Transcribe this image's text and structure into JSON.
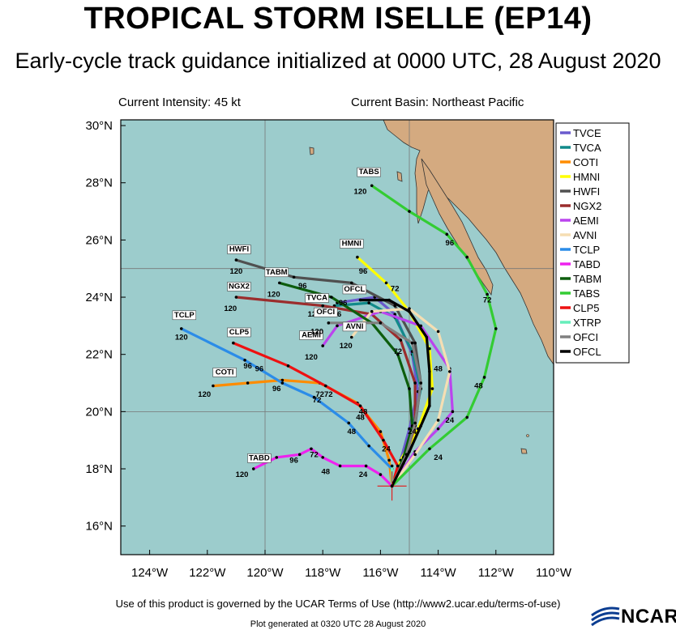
{
  "title": "TROPICAL STORM ISELLE (EP14)",
  "subtitle": "Early-cycle track guidance initialized at 0000 UTC, 28 August 2020",
  "current_intensity": "Current Intensity: 45 kt",
  "current_basin": "Current Basin: Northeast Pacific",
  "footer_terms": "Use of this product is governed by the UCAR Terms of Use (http://www2.ucar.edu/terms-of-use)",
  "footer_plot": "Plot generated at 0320 UTC   28 August 2020",
  "logo_text": "NCAR",
  "colors": {
    "ocean": "#9ccccc",
    "land": "#d4aa80"
  },
  "axes": {
    "lon_ticks": [
      "124°W",
      "122°W",
      "120°W",
      "118°W",
      "116°W",
      "114°W",
      "112°W",
      "110°W"
    ],
    "lat_ticks": [
      "30°N",
      "28°N",
      "26°N",
      "24°N",
      "22°N",
      "20°N",
      "18°N",
      "16°N"
    ],
    "lon_range": [
      -125,
      -110
    ],
    "lat_range": [
      15,
      30.2
    ]
  },
  "initial_position": {
    "lon": -115.6,
    "lat": 17.4
  },
  "chart_data": {
    "type": "line",
    "series": [
      {
        "name": "TVCE",
        "color": "#6a5acd",
        "points": [
          [
            -115.6,
            17.4
          ],
          [
            -115.3,
            18.3
          ],
          [
            -115.0,
            19.4
          ],
          [
            -114.7,
            20.7
          ],
          [
            -114.9,
            22.0
          ],
          [
            -115.5,
            23.4
          ],
          [
            -116.2,
            24.0
          ],
          [
            -117.5,
            23.8
          ]
        ],
        "labels": []
      },
      {
        "name": "TVCA",
        "color": "#118a8a",
        "points": [
          [
            -115.6,
            17.4
          ],
          [
            -115.2,
            18.3
          ],
          [
            -114.9,
            19.4
          ],
          [
            -114.6,
            20.8
          ],
          [
            -114.9,
            22.1
          ],
          [
            -115.5,
            23.3
          ],
          [
            -116.4,
            23.8
          ],
          [
            -117.6,
            23.7
          ]
        ],
        "labels": [
          {
            "text": "TVCA",
            "lon": -118.2,
            "lat": 23.9
          },
          {
            "text": "120",
            "lon": -118.3,
            "lat": 23.4
          },
          {
            "text": "96",
            "lon": -117.5,
            "lat": 23.4
          }
        ]
      },
      {
        "name": "COTI",
        "color": "#ff8c00",
        "points": [
          [
            -115.6,
            17.4
          ],
          [
            -115.7,
            18.3
          ],
          [
            -116.0,
            19.3
          ],
          [
            -116.8,
            20.3
          ],
          [
            -118.1,
            21.0
          ],
          [
            -119.4,
            21.1
          ],
          [
            -120.6,
            21.0
          ],
          [
            -121.8,
            20.9
          ]
        ],
        "labels": [
          {
            "text": "COTI",
            "lon": -121.4,
            "lat": 21.3
          },
          {
            "text": "120",
            "lon": -122.1,
            "lat": 20.6
          },
          {
            "text": "96",
            "lon": -119.6,
            "lat": 20.8
          },
          {
            "text": "72",
            "lon": -117.8,
            "lat": 20.6
          },
          {
            "text": "48",
            "lon": -116.6,
            "lat": 20.0
          }
        ]
      },
      {
        "name": "HMNI",
        "color": "#ffff00",
        "points": [
          [
            -115.6,
            17.4
          ],
          [
            -115.3,
            18.3
          ],
          [
            -114.7,
            19.4
          ],
          [
            -114.2,
            20.8
          ],
          [
            -114.3,
            22.2
          ],
          [
            -115.0,
            23.5
          ],
          [
            -115.8,
            24.5
          ],
          [
            -116.8,
            25.4
          ]
        ],
        "labels": [
          {
            "text": "HMNI",
            "lon": -117.0,
            "lat": 25.8
          },
          {
            "text": "96",
            "lon": -116.6,
            "lat": 24.9
          }
        ]
      },
      {
        "name": "HWFI",
        "color": "#505050",
        "points": [
          [
            -115.6,
            17.4
          ],
          [
            -115.2,
            18.4
          ],
          [
            -114.8,
            19.5
          ],
          [
            -114.6,
            21.0
          ],
          [
            -114.8,
            22.4
          ],
          [
            -115.5,
            23.7
          ],
          [
            -117.0,
            24.5
          ],
          [
            -119.0,
            24.7
          ],
          [
            -121.0,
            25.3
          ]
        ],
        "labels": [
          {
            "text": "HWFI",
            "lon": -120.9,
            "lat": 25.6
          },
          {
            "text": "120",
            "lon": -121.0,
            "lat": 24.9
          },
          {
            "text": "96",
            "lon": -118.7,
            "lat": 24.4
          },
          {
            "text": "72",
            "lon": -115.5,
            "lat": 24.3
          }
        ]
      },
      {
        "name": "NGX2",
        "color": "#9b2d2d",
        "points": [
          [
            -115.6,
            17.4
          ],
          [
            -115.2,
            18.2
          ],
          [
            -114.8,
            19.5
          ],
          [
            -114.8,
            21.0
          ],
          [
            -115.3,
            22.5
          ],
          [
            -116.3,
            23.4
          ],
          [
            -118.0,
            23.7
          ],
          [
            -121.0,
            24.0
          ]
        ],
        "labels": [
          {
            "text": "NGX2",
            "lon": -120.9,
            "lat": 24.3
          },
          {
            "text": "120",
            "lon": -121.2,
            "lat": 23.6
          },
          {
            "text": "96",
            "lon": -117.3,
            "lat": 23.8
          }
        ]
      },
      {
        "name": "AEMI",
        "color": "#bb44ee",
        "points": [
          [
            -115.6,
            17.4
          ],
          [
            -114.8,
            18.6
          ],
          [
            -114.0,
            19.4
          ],
          [
            -113.5,
            20.0
          ],
          [
            -113.6,
            21.5
          ],
          [
            -114.6,
            23.0
          ],
          [
            -116.0,
            23.5
          ],
          [
            -117.5,
            23.0
          ],
          [
            -118.0,
            22.3
          ]
        ],
        "labels": [
          {
            "text": "AEMI",
            "lon": -118.4,
            "lat": 22.6
          },
          {
            "text": "120",
            "lon": -118.4,
            "lat": 21.9
          },
          {
            "text": "24",
            "lon": -113.6,
            "lat": 19.7
          }
        ]
      },
      {
        "name": "AVNI",
        "color": "#f5deb3",
        "points": [
          [
            -115.6,
            17.4
          ],
          [
            -114.8,
            18.5
          ],
          [
            -114.0,
            19.7
          ],
          [
            -113.6,
            21.4
          ],
          [
            -114.0,
            22.8
          ],
          [
            -115.0,
            23.6
          ],
          [
            -116.3,
            23.5
          ],
          [
            -117.0,
            22.6
          ]
        ],
        "labels": [
          {
            "text": "AVNI",
            "lon": -116.9,
            "lat": 22.9
          },
          {
            "text": "120",
            "lon": -117.2,
            "lat": 22.3
          }
        ]
      },
      {
        "name": "TCLP",
        "color": "#2b8ce8",
        "points": [
          [
            -115.6,
            17.4
          ],
          [
            -115.6,
            18.0
          ],
          [
            -116.4,
            18.8
          ],
          [
            -117.1,
            19.6
          ],
          [
            -118.3,
            20.5
          ],
          [
            -119.4,
            21.0
          ],
          [
            -120.7,
            21.8
          ],
          [
            -122.9,
            22.9
          ]
        ],
        "labels": [
          {
            "text": "TCLP",
            "lon": -122.8,
            "lat": 23.3
          },
          {
            "text": "120",
            "lon": -122.9,
            "lat": 22.6
          },
          {
            "text": "96",
            "lon": -120.2,
            "lat": 21.5
          },
          {
            "text": "72",
            "lon": -118.2,
            "lat": 20.4
          },
          {
            "text": "48",
            "lon": -117.0,
            "lat": 19.3
          },
          {
            "text": "24",
            "lon": -115.8,
            "lat": 18.7
          }
        ]
      },
      {
        "name": "TABD",
        "color": "#ee22ee",
        "points": [
          [
            -115.6,
            17.4
          ],
          [
            -116.0,
            17.8
          ],
          [
            -116.5,
            18.1
          ],
          [
            -117.4,
            18.1
          ],
          [
            -118.0,
            18.4
          ],
          [
            -118.4,
            18.7
          ],
          [
            -118.8,
            18.5
          ],
          [
            -119.6,
            18.4
          ],
          [
            -120.4,
            18.0
          ]
        ],
        "labels": [
          {
            "text": "TABD",
            "lon": -120.2,
            "lat": 18.3
          },
          {
            "text": "120",
            "lon": -120.8,
            "lat": 17.8
          },
          {
            "text": "96",
            "lon": -119.0,
            "lat": 18.3
          },
          {
            "text": "72",
            "lon": -118.3,
            "lat": 18.5
          },
          {
            "text": "48",
            "lon": -117.9,
            "lat": 17.9
          },
          {
            "text": "24",
            "lon": -116.6,
            "lat": 17.8
          }
        ]
      },
      {
        "name": "TABM",
        "color": "#0d5d0d",
        "points": [
          [
            -115.6,
            17.4
          ],
          [
            -115.2,
            18.4
          ],
          [
            -114.9,
            19.5
          ],
          [
            -115.0,
            20.8
          ],
          [
            -115.4,
            22.0
          ],
          [
            -116.3,
            23.1
          ],
          [
            -117.7,
            24.0
          ],
          [
            -119.5,
            24.5
          ]
        ],
        "labels": [
          {
            "text": "TABM",
            "lon": -119.6,
            "lat": 24.8
          },
          {
            "text": "120",
            "lon": -119.7,
            "lat": 24.1
          },
          {
            "text": "72",
            "lon": -115.4,
            "lat": 22.1
          }
        ]
      },
      {
        "name": "TABS",
        "color": "#33cc33",
        "points": [
          [
            -115.6,
            17.4
          ],
          [
            -114.3,
            18.7
          ],
          [
            -113.0,
            19.8
          ],
          [
            -112.4,
            21.2
          ],
          [
            -112.0,
            22.9
          ],
          [
            -112.3,
            24.1
          ],
          [
            -113.0,
            25.4
          ],
          [
            -113.7,
            26.2
          ],
          [
            -115.0,
            27.0
          ],
          [
            -116.3,
            27.9
          ]
        ],
        "labels": [
          {
            "text": "TABS",
            "lon": -116.4,
            "lat": 28.3
          },
          {
            "text": "120",
            "lon": -116.7,
            "lat": 27.7
          },
          {
            "text": "96",
            "lon": -113.6,
            "lat": 25.9
          },
          {
            "text": "72",
            "lon": -112.3,
            "lat": 23.9
          },
          {
            "text": "48",
            "lon": -112.6,
            "lat": 20.9
          },
          {
            "text": "24",
            "lon": -114.0,
            "lat": 18.4
          }
        ]
      },
      {
        "name": "CLP5",
        "color": "#ee1111",
        "points": [
          [
            -115.6,
            17.4
          ],
          [
            -115.4,
            18.1
          ],
          [
            -115.9,
            19.0
          ],
          [
            -116.7,
            20.2
          ],
          [
            -117.9,
            20.9
          ],
          [
            -119.2,
            21.6
          ],
          [
            -121.1,
            22.4
          ]
        ],
        "labels": [
          {
            "text": "CLP5",
            "lon": -120.9,
            "lat": 22.7
          },
          {
            "text": "96",
            "lon": -120.6,
            "lat": 21.6
          },
          {
            "text": "72",
            "lon": -118.1,
            "lat": 20.6
          },
          {
            "text": "48",
            "lon": -116.7,
            "lat": 19.8
          }
        ]
      },
      {
        "name": "XTRP",
        "color": "#66eebb",
        "points": [
          [
            -115.6,
            17.4
          ],
          [
            -115.6,
            18.1
          ]
        ],
        "labels": []
      },
      {
        "name": "OFCI",
        "color": "#808080",
        "points": [
          [
            -115.6,
            17.4
          ],
          [
            -115.1,
            18.5
          ],
          [
            -114.8,
            19.6
          ],
          [
            -114.6,
            21.0
          ],
          [
            -114.9,
            22.4
          ],
          [
            -116.0,
            23.1
          ],
          [
            -117.8,
            23.1
          ]
        ],
        "labels": [
          {
            "text": "OFCI",
            "lon": -117.9,
            "lat": 23.4
          },
          {
            "text": "120",
            "lon": -118.2,
            "lat": 22.8
          }
        ]
      },
      {
        "name": "OFCL",
        "color": "#000000",
        "points": [
          [
            -115.6,
            17.4
          ],
          [
            -115.0,
            18.6
          ],
          [
            -114.6,
            19.5
          ],
          [
            -114.3,
            20.2
          ],
          [
            -114.3,
            21.4
          ],
          [
            -114.4,
            22.6
          ],
          [
            -115.0,
            23.5
          ],
          [
            -115.7,
            23.9
          ],
          [
            -116.7,
            23.9
          ]
        ],
        "labels": [
          {
            "text": "OFCL",
            "lon": -116.9,
            "lat": 24.2
          },
          {
            "text": "48",
            "lon": -114.0,
            "lat": 21.5
          },
          {
            "text": "24",
            "lon": -114.9,
            "lat": 19.3
          }
        ]
      }
    ]
  }
}
